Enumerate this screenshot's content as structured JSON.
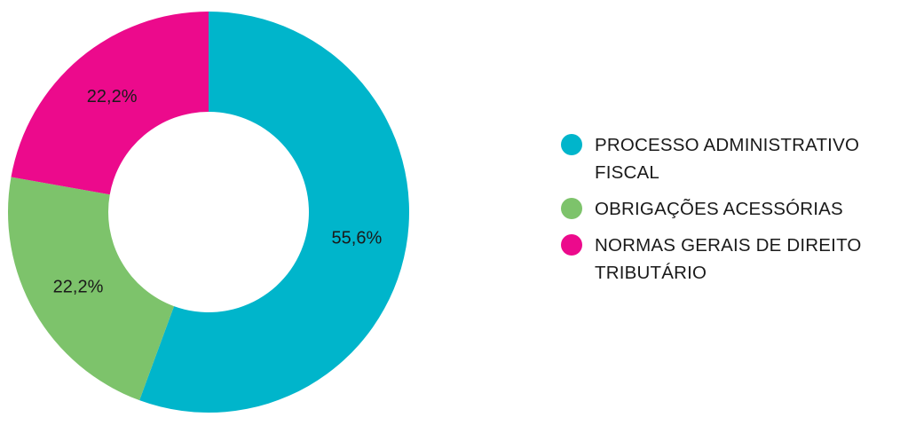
{
  "chart_data": {
    "type": "pie",
    "donut": true,
    "title": "",
    "legend_position": "right",
    "slices": [
      {
        "label": "PROCESSO ADMINISTRATIVO FISCAL",
        "value": 55.6,
        "value_label": "55,6%",
        "color": "#00B5CB"
      },
      {
        "label": "OBRIGAÇÕES ACESSÓRIAS",
        "value": 22.2,
        "value_label": "22,2%",
        "color": "#7DC36B"
      },
      {
        "label": "NORMAS GERAIS DE DIREITO TRIBUTÁRIO",
        "value": 22.2,
        "value_label": "22,2%",
        "color": "#EC0A8C"
      }
    ]
  }
}
